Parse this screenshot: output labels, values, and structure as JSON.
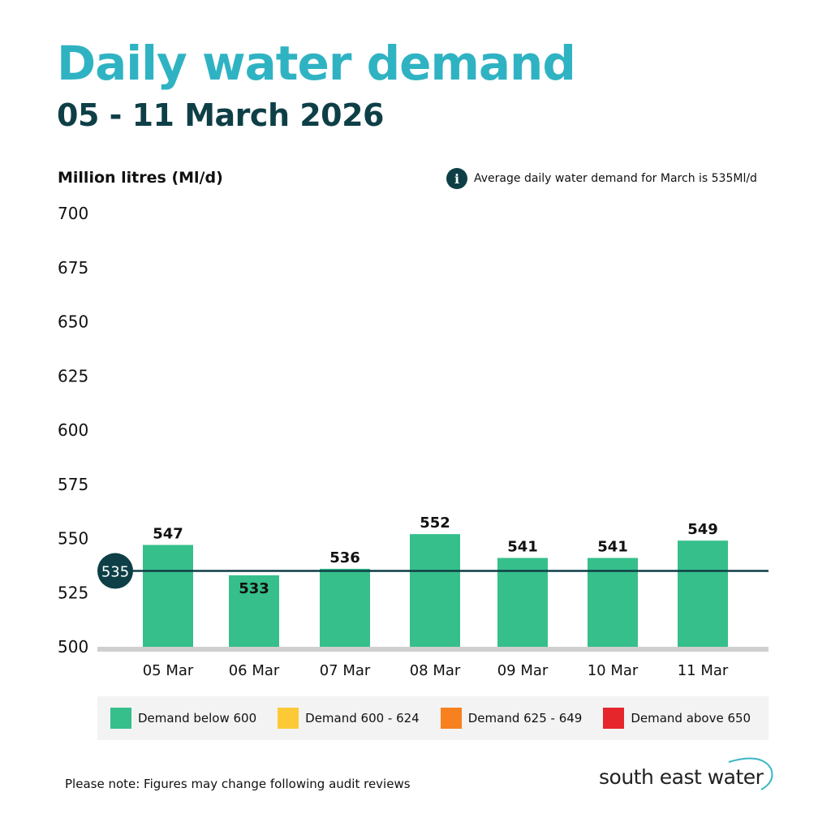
{
  "header": {
    "title": "Daily water demand",
    "subtitle": "05 - 11 March 2026"
  },
  "info_note": {
    "icon": "info-icon",
    "text": "Average daily water demand for March is 535Ml/d"
  },
  "chart_data": {
    "type": "bar",
    "ylabel": "Million litres (Ml/d)",
    "ylim": [
      500,
      700
    ],
    "yticks": [
      "500",
      "525",
      "550",
      "575",
      "600",
      "625",
      "650",
      "675",
      "700"
    ],
    "categories": [
      "05 Mar",
      "06 Mar",
      "07 Mar",
      "08 Mar",
      "09 Mar",
      "10 Mar",
      "11 Mar"
    ],
    "values": [
      547,
      533,
      536,
      552,
      541,
      541,
      549
    ],
    "data_labels": [
      "547",
      "533",
      "536",
      "552",
      "541",
      "541",
      "549"
    ],
    "bar_color": "#36bf8b",
    "reference_line": {
      "value": 535,
      "label": "535",
      "color": "#0e3f47"
    },
    "grid": false,
    "legend_position": "bottom",
    "legend": [
      {
        "label": "Demand below 600",
        "color": "#36bf8b"
      },
      {
        "label": "Demand 600 - 624",
        "color": "#fdc936"
      },
      {
        "label": "Demand 625 - 649",
        "color": "#f7811f"
      },
      {
        "label": "Demand above 650",
        "color": "#e5262b"
      }
    ]
  },
  "footer": {
    "note": "Please note: Figures may change following audit reviews",
    "logo_text": "south east water"
  }
}
